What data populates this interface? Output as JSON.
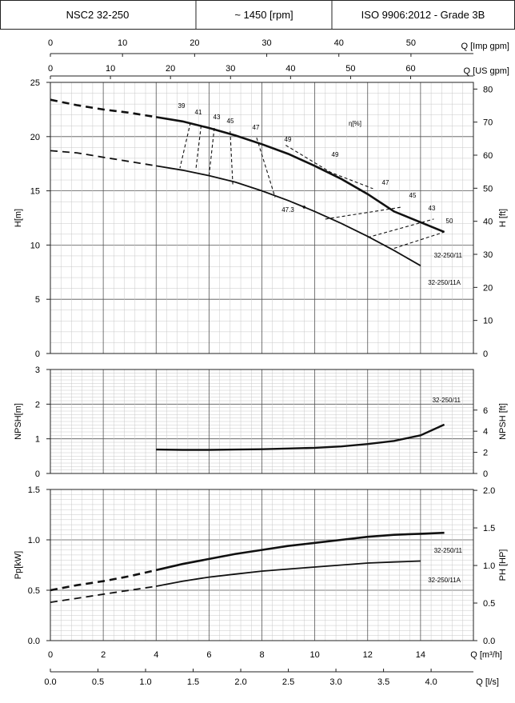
{
  "header": {
    "model": "NSC2 32-250",
    "speed": "~ 1450 [rpm]",
    "standard": "ISO 9906:2012 - Grade 3B"
  },
  "axes": {
    "imp_gpm": {
      "label": "Q [Imp gpm]",
      "ticks": [
        "0",
        "10",
        "20",
        "30",
        "40",
        "50"
      ]
    },
    "us_gpm": {
      "label": "Q [US gpm]",
      "ticks": [
        "0",
        "10",
        "20",
        "30",
        "40",
        "50",
        "60"
      ]
    },
    "m3h": {
      "label": "Q [m³/h]",
      "ticks": [
        "0",
        "2",
        "4",
        "6",
        "8",
        "10",
        "12",
        "14"
      ]
    },
    "ls": {
      "label": "Q [l/s]",
      "ticks": [
        "0.0",
        "0.5",
        "1.0",
        "1.5",
        "2.0",
        "2.5",
        "3.0",
        "3.5",
        "4.0"
      ]
    }
  },
  "chart_data": [
    {
      "type": "line",
      "panel": "head",
      "ylabel": "H[m]",
      "ylabel_right": "H [ft]",
      "ylim": [
        0,
        25
      ],
      "ylim_right_ft": [
        0,
        82
      ],
      "y_ticks": [
        "0",
        "5",
        "10",
        "15",
        "20",
        "25"
      ],
      "y_ticks_right": [
        "0",
        "10",
        "20",
        "30",
        "40",
        "50",
        "60",
        "70",
        "80"
      ],
      "efficiency_label": "η[%]",
      "series": [
        {
          "name": "32-250/11",
          "x": [
            0,
            1,
            2,
            3,
            4,
            5,
            6,
            7,
            8,
            9,
            10,
            11,
            12,
            13,
            14.9
          ],
          "y": [
            23.4,
            22.9,
            22.5,
            22.2,
            21.8,
            21.4,
            20.8,
            20.1,
            19.3,
            18.4,
            17.3,
            16.1,
            14.7,
            13.1,
            11.2
          ]
        },
        {
          "name": "32-250/11A",
          "x": [
            0,
            1,
            2,
            3,
            4,
            5,
            6,
            7,
            8,
            9,
            10,
            11,
            12,
            13,
            14
          ],
          "y": [
            18.7,
            18.5,
            18.1,
            17.7,
            17.3,
            16.9,
            16.4,
            15.8,
            15.0,
            14.1,
            13.1,
            12.0,
            10.8,
            9.5,
            8.1
          ]
        }
      ],
      "efficiency": [
        {
          "label": "39",
          "x": [
            5.3,
            4.9
          ],
          "y": [
            21.3,
            17.1
          ]
        },
        {
          "label": "41",
          "x": [
            5.7,
            5.5
          ],
          "y": [
            21.0,
            16.9
          ]
        },
        {
          "label": "43",
          "x": [
            6.2,
            6.0
          ],
          "y": [
            20.8,
            16.4
          ]
        },
        {
          "label": "45",
          "x": [
            6.8,
            6.9
          ],
          "y": [
            20.5,
            15.6
          ]
        },
        {
          "label": "47",
          "x": [
            7.8,
            8.5
          ],
          "y": [
            19.9,
            14.4
          ]
        },
        {
          "label": "49",
          "x": [
            8.9,
            10.6,
            12.2
          ],
          "y": [
            19.2,
            16.7,
            15.2
          ]
        },
        {
          "label": "49",
          "x": [
            12.2
          ],
          "y": [
            15.2
          ]
        },
        {
          "label": "47",
          "x": [
            10.4,
            13.3
          ],
          "y": [
            12.4,
            13.5
          ]
        },
        {
          "label": "45",
          "x": [
            12.0,
            14.5
          ],
          "y": [
            10.7,
            12.4
          ]
        },
        {
          "label": "43",
          "x": [
            13.0,
            14.9
          ],
          "y": [
            9.7,
            11.2
          ]
        },
        {
          "label": "50",
          "x": [],
          "y": []
        },
        {
          "label": "47.3",
          "x": [],
          "y": []
        }
      ]
    },
    {
      "type": "line",
      "panel": "npsh",
      "ylabel": "NPSH[m]",
      "ylabel_right": "NPSH [ft]",
      "ylim": [
        0,
        3
      ],
      "y_ticks": [
        "0",
        "1",
        "2",
        "3"
      ],
      "y_ticks_right": [
        "0",
        "2",
        "4",
        "6"
      ],
      "series": [
        {
          "name": "32-250/11",
          "x": [
            4,
            5,
            6,
            7,
            8,
            9,
            10,
            11,
            12,
            13,
            14,
            14.9
          ],
          "y": [
            0.69,
            0.68,
            0.68,
            0.69,
            0.7,
            0.72,
            0.74,
            0.78,
            0.85,
            0.94,
            1.1,
            1.41
          ]
        }
      ]
    },
    {
      "type": "line",
      "panel": "power",
      "ylabel": "Pp[kW]",
      "ylabel_right": "PH [HP]",
      "ylim": [
        0,
        1.5
      ],
      "y_ticks": [
        "0.0",
        "0.5",
        "1.0",
        "1.5"
      ],
      "y_ticks_right": [
        "0.0",
        "0.5",
        "1.0",
        "1.5",
        "2.0"
      ],
      "series": [
        {
          "name": "32-250/11",
          "x": [
            0,
            1,
            2,
            3,
            4,
            5,
            6,
            7,
            8,
            9,
            10,
            11,
            12,
            13,
            14,
            14.9
          ],
          "y": [
            0.5,
            0.55,
            0.59,
            0.64,
            0.7,
            0.76,
            0.81,
            0.86,
            0.9,
            0.94,
            0.97,
            1.0,
            1.03,
            1.05,
            1.06,
            1.07
          ]
        },
        {
          "name": "32-250/11A",
          "x": [
            0,
            1,
            2,
            3,
            4,
            5,
            6,
            7,
            8,
            9,
            10,
            11,
            12,
            13,
            14
          ],
          "y": [
            0.38,
            0.42,
            0.46,
            0.5,
            0.54,
            0.59,
            0.63,
            0.66,
            0.69,
            0.71,
            0.73,
            0.75,
            0.77,
            0.78,
            0.79
          ]
        }
      ]
    }
  ]
}
